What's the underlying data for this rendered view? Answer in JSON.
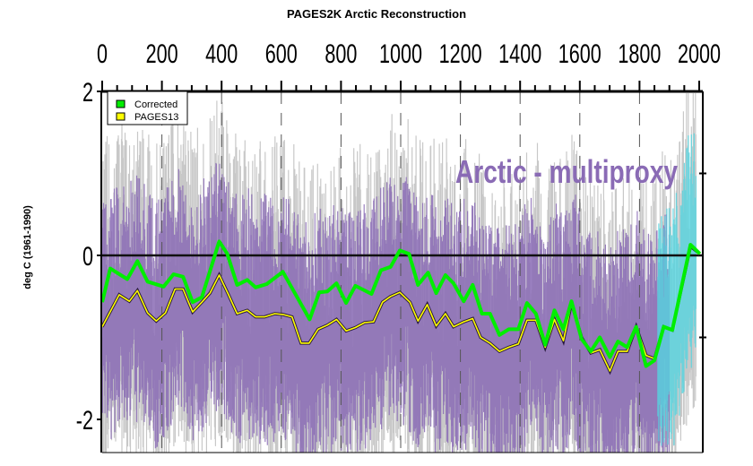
{
  "chart_data": {
    "type": "line",
    "title": "PAGES2K Arctic Reconstruction",
    "ylabel": "deg C (1961-1990)",
    "xlabel": "",
    "annotation": "Arctic - multiproxy",
    "xlim": [
      0,
      2000
    ],
    "ylim": [
      -2.4,
      2
    ],
    "x_ticks": [
      "0",
      "200",
      "400",
      "600",
      "800",
      "1000",
      "1200",
      "1400",
      "1600",
      "1800",
      "2000"
    ],
    "y_ticks": [
      "2",
      "0",
      "-2"
    ],
    "grid": "dashed vertical every 200 years",
    "legend_position": "top-left",
    "colors": {
      "corrected": "#00ee00",
      "pages13": "#ffff00",
      "proxy": "#8a6bb5",
      "proxy_range": "#c8c8c8",
      "instrumental": "#55d5e0",
      "annotation": "#8a6bb5"
    },
    "series": [
      {
        "name": "Corrected",
        "color": "#00ee00",
        "x": [
          0,
          27,
          84,
          118,
          152,
          206,
          239,
          271,
          303,
          334,
          392,
          419,
          452,
          486,
          514,
          551,
          605,
          695,
          727,
          754,
          785,
          817,
          848,
          902,
          934,
          966,
          997,
          1028,
          1058,
          1092,
          1119,
          1150,
          1177,
          1211,
          1241,
          1272,
          1299,
          1331,
          1362,
          1394,
          1423,
          1453,
          1484,
          1515,
          1545,
          1572,
          1606,
          1637,
          1667,
          1701,
          1728,
          1759,
          1789,
          1822,
          1850,
          1881,
          1910,
          1971,
          2002
        ],
        "y": [
          -0.57,
          -0.16,
          -0.29,
          -0.07,
          -0.32,
          -0.38,
          -0.23,
          -0.26,
          -0.57,
          -0.51,
          0.17,
          0.02,
          -0.36,
          -0.3,
          -0.39,
          -0.35,
          -0.2,
          -0.78,
          -0.45,
          -0.44,
          -0.34,
          -0.58,
          -0.37,
          -0.47,
          -0.18,
          -0.14,
          0.06,
          0.02,
          -0.36,
          -0.21,
          -0.46,
          -0.24,
          -0.34,
          -0.56,
          -0.36,
          -0.71,
          -0.71,
          -0.97,
          -0.9,
          -0.9,
          -0.58,
          -0.71,
          -1.09,
          -0.67,
          -0.9,
          -0.56,
          -1.02,
          -1.17,
          -1.0,
          -1.24,
          -1.05,
          -1.12,
          -0.87,
          -1.35,
          -1.28,
          -0.87,
          -0.91,
          0.13,
          0.02
        ]
      },
      {
        "name": "PAGES13",
        "color": "#ffff00",
        "x": [
          0,
          57,
          91,
          118,
          152,
          181,
          212,
          244,
          271,
          303,
          334,
          361,
          392,
          422,
          452,
          486,
          514,
          544,
          578,
          605,
          636,
          666,
          693,
          723,
          754,
          785,
          817,
          848,
          879,
          909,
          939,
          966,
          997,
          1031,
          1058,
          1089,
          1119,
          1150,
          1177,
          1211,
          1241,
          1268,
          1299,
          1331,
          1362,
          1394,
          1423,
          1453,
          1484,
          1515,
          1545,
          1572,
          1606,
          1637,
          1667,
          1701,
          1728,
          1759,
          1789,
          1822,
          1850,
          1881,
          1910,
          1971,
          2002
        ],
        "y": [
          -0.87,
          -0.48,
          -0.56,
          -0.43,
          -0.7,
          -0.8,
          -0.7,
          -0.41,
          -0.41,
          -0.69,
          -0.57,
          -0.46,
          -0.24,
          -0.47,
          -0.71,
          -0.67,
          -0.75,
          -0.75,
          -0.71,
          -0.72,
          -0.75,
          -1.07,
          -1.07,
          -0.9,
          -0.85,
          -0.78,
          -0.92,
          -0.88,
          -0.82,
          -0.81,
          -0.57,
          -0.5,
          -0.45,
          -0.57,
          -0.8,
          -0.6,
          -0.86,
          -0.71,
          -0.87,
          -0.81,
          -0.77,
          -1.0,
          -1.07,
          -1.17,
          -1.12,
          -1.08,
          -0.79,
          -0.79,
          -1.12,
          -0.78,
          -1.04,
          -0.58,
          -1.0,
          -1.19,
          -1.15,
          -1.41,
          -1.17,
          -1.17,
          -0.87,
          -1.22,
          -1.26,
          -0.87,
          -0.91,
          0.11,
          0.02
        ]
      }
    ]
  }
}
